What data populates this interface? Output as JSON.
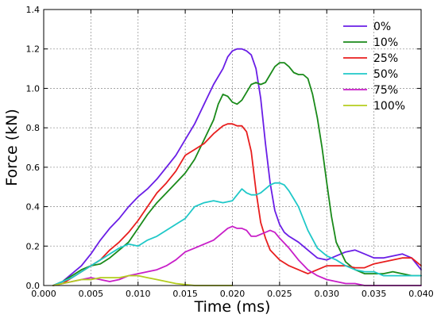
{
  "chart_data": {
    "type": "line",
    "title": "",
    "xlabel": "Time (ms)",
    "ylabel": "Force (kN)",
    "xlim": [
      0.0,
      0.04
    ],
    "ylim": [
      0.0,
      1.4
    ],
    "xticks": [
      0.0,
      0.005,
      0.01,
      0.015,
      0.02,
      0.025,
      0.03,
      0.035,
      0.04
    ],
    "xtick_labels": [
      "0.000",
      "0.005",
      "0.010",
      "0.015",
      "0.020",
      "0.025",
      "0.030",
      "0.035",
      "0.040"
    ],
    "yticks": [
      0.0,
      0.2,
      0.4,
      0.6,
      0.8,
      1.0,
      1.2,
      1.4
    ],
    "ytick_labels": [
      "0.0",
      "0.2",
      "0.4",
      "0.6",
      "0.8",
      "1.0",
      "1.2",
      "1.4"
    ],
    "grid": true,
    "legend_position": "top-right",
    "series": [
      {
        "name": "0%",
        "color": "#6a1ee6",
        "x": [
          0.001,
          0.002,
          0.003,
          0.004,
          0.005,
          0.006,
          0.007,
          0.008,
          0.009,
          0.01,
          0.011,
          0.012,
          0.013,
          0.014,
          0.015,
          0.016,
          0.017,
          0.018,
          0.019,
          0.0195,
          0.02,
          0.0205,
          0.021,
          0.0215,
          0.022,
          0.0225,
          0.023,
          0.0235,
          0.024,
          0.0245,
          0.025,
          0.0255,
          0.026,
          0.027,
          0.028,
          0.029,
          0.03,
          0.031,
          0.032,
          0.033,
          0.034,
          0.035,
          0.036,
          0.037,
          0.038,
          0.039,
          0.04
        ],
        "y": [
          0.0,
          0.02,
          0.06,
          0.1,
          0.16,
          0.23,
          0.29,
          0.34,
          0.4,
          0.45,
          0.49,
          0.54,
          0.6,
          0.66,
          0.74,
          0.82,
          0.92,
          1.02,
          1.1,
          1.16,
          1.19,
          1.2,
          1.2,
          1.19,
          1.17,
          1.1,
          0.95,
          0.72,
          0.52,
          0.38,
          0.31,
          0.27,
          0.25,
          0.22,
          0.18,
          0.14,
          0.13,
          0.15,
          0.17,
          0.18,
          0.16,
          0.14,
          0.14,
          0.15,
          0.16,
          0.14,
          0.08
        ]
      },
      {
        "name": "10%",
        "color": "#1a8a1a",
        "x": [
          0.001,
          0.002,
          0.003,
          0.004,
          0.005,
          0.006,
          0.007,
          0.008,
          0.009,
          0.01,
          0.011,
          0.012,
          0.013,
          0.014,
          0.015,
          0.016,
          0.017,
          0.018,
          0.0185,
          0.019,
          0.0195,
          0.02,
          0.0205,
          0.021,
          0.0215,
          0.022,
          0.0225,
          0.023,
          0.0235,
          0.024,
          0.0245,
          0.025,
          0.0255,
          0.026,
          0.0265,
          0.027,
          0.0275,
          0.028,
          0.0285,
          0.029,
          0.0295,
          0.03,
          0.0305,
          0.031,
          0.032,
          0.033,
          0.034,
          0.035,
          0.036,
          0.037,
          0.038,
          0.039,
          0.04
        ],
        "y": [
          0.0,
          0.02,
          0.05,
          0.08,
          0.1,
          0.11,
          0.14,
          0.18,
          0.22,
          0.29,
          0.36,
          0.42,
          0.47,
          0.52,
          0.57,
          0.64,
          0.74,
          0.84,
          0.92,
          0.97,
          0.96,
          0.93,
          0.92,
          0.94,
          0.98,
          1.02,
          1.03,
          1.02,
          1.03,
          1.07,
          1.11,
          1.13,
          1.13,
          1.11,
          1.08,
          1.07,
          1.07,
          1.05,
          0.97,
          0.85,
          0.7,
          0.52,
          0.35,
          0.22,
          0.12,
          0.08,
          0.06,
          0.06,
          0.06,
          0.07,
          0.06,
          0.05,
          0.05
        ]
      },
      {
        "name": "25%",
        "color": "#e81e1e",
        "x": [
          0.001,
          0.002,
          0.003,
          0.004,
          0.005,
          0.006,
          0.007,
          0.008,
          0.009,
          0.01,
          0.011,
          0.012,
          0.013,
          0.014,
          0.015,
          0.016,
          0.017,
          0.018,
          0.019,
          0.0195,
          0.02,
          0.0205,
          0.021,
          0.0215,
          0.022,
          0.0225,
          0.023,
          0.0235,
          0.024,
          0.025,
          0.026,
          0.027,
          0.028,
          0.029,
          0.03,
          0.031,
          0.032,
          0.033,
          0.034,
          0.035,
          0.036,
          0.037,
          0.038,
          0.039,
          0.04
        ],
        "y": [
          0.0,
          0.01,
          0.04,
          0.07,
          0.1,
          0.13,
          0.18,
          0.22,
          0.27,
          0.33,
          0.4,
          0.47,
          0.52,
          0.58,
          0.66,
          0.69,
          0.72,
          0.77,
          0.81,
          0.82,
          0.82,
          0.81,
          0.81,
          0.78,
          0.68,
          0.48,
          0.32,
          0.24,
          0.18,
          0.13,
          0.1,
          0.08,
          0.06,
          0.08,
          0.1,
          0.1,
          0.1,
          0.09,
          0.09,
          0.11,
          0.12,
          0.13,
          0.14,
          0.14,
          0.1
        ]
      },
      {
        "name": "50%",
        "color": "#1fc8c8",
        "x": [
          0.001,
          0.002,
          0.003,
          0.004,
          0.005,
          0.006,
          0.007,
          0.008,
          0.009,
          0.01,
          0.011,
          0.012,
          0.013,
          0.014,
          0.015,
          0.016,
          0.017,
          0.018,
          0.019,
          0.02,
          0.0205,
          0.021,
          0.0215,
          0.022,
          0.0225,
          0.023,
          0.0235,
          0.024,
          0.0245,
          0.025,
          0.0255,
          0.026,
          0.0265,
          0.027,
          0.028,
          0.029,
          0.03,
          0.031,
          0.032,
          0.033,
          0.034,
          0.035,
          0.036,
          0.037,
          0.038,
          0.039,
          0.04
        ],
        "y": [
          0.0,
          0.02,
          0.04,
          0.07,
          0.1,
          0.13,
          0.16,
          0.19,
          0.21,
          0.2,
          0.23,
          0.25,
          0.28,
          0.31,
          0.34,
          0.4,
          0.42,
          0.43,
          0.42,
          0.43,
          0.46,
          0.49,
          0.47,
          0.46,
          0.46,
          0.47,
          0.49,
          0.51,
          0.52,
          0.52,
          0.51,
          0.48,
          0.44,
          0.4,
          0.28,
          0.19,
          0.15,
          0.13,
          0.1,
          0.08,
          0.07,
          0.07,
          0.05,
          0.05,
          0.05,
          0.05,
          0.05
        ]
      },
      {
        "name": "75%",
        "color": "#c81ec8",
        "x": [
          0.001,
          0.002,
          0.003,
          0.004,
          0.005,
          0.006,
          0.007,
          0.008,
          0.009,
          0.01,
          0.011,
          0.012,
          0.013,
          0.014,
          0.015,
          0.016,
          0.017,
          0.018,
          0.019,
          0.0195,
          0.02,
          0.0205,
          0.021,
          0.0215,
          0.022,
          0.0225,
          0.023,
          0.0235,
          0.024,
          0.0245,
          0.025,
          0.026,
          0.027,
          0.028,
          0.029,
          0.03,
          0.031,
          0.032,
          0.033,
          0.034,
          0.035,
          0.036,
          0.037,
          0.038,
          0.039,
          0.04
        ],
        "y": [
          0.0,
          0.01,
          0.02,
          0.03,
          0.04,
          0.03,
          0.02,
          0.03,
          0.05,
          0.06,
          0.07,
          0.08,
          0.1,
          0.13,
          0.17,
          0.19,
          0.21,
          0.23,
          0.27,
          0.29,
          0.3,
          0.29,
          0.29,
          0.28,
          0.25,
          0.25,
          0.26,
          0.27,
          0.28,
          0.27,
          0.24,
          0.19,
          0.13,
          0.08,
          0.05,
          0.03,
          0.02,
          0.01,
          0.01,
          0.0,
          0.0,
          0.0,
          0.0,
          0.0,
          0.0,
          0.0
        ]
      },
      {
        "name": "100%",
        "color": "#b4cd1e",
        "x": [
          0.001,
          0.002,
          0.003,
          0.004,
          0.005,
          0.006,
          0.007,
          0.008,
          0.009,
          0.01,
          0.011,
          0.012,
          0.013,
          0.014,
          0.015,
          0.016,
          0.017,
          0.018,
          0.019,
          0.02
        ],
        "y": [
          0.0,
          0.01,
          0.02,
          0.03,
          0.03,
          0.04,
          0.04,
          0.04,
          0.05,
          0.05,
          0.04,
          0.03,
          0.02,
          0.01,
          0.005,
          0.0,
          0.0,
          0.0,
          0.0,
          0.0
        ]
      }
    ]
  }
}
